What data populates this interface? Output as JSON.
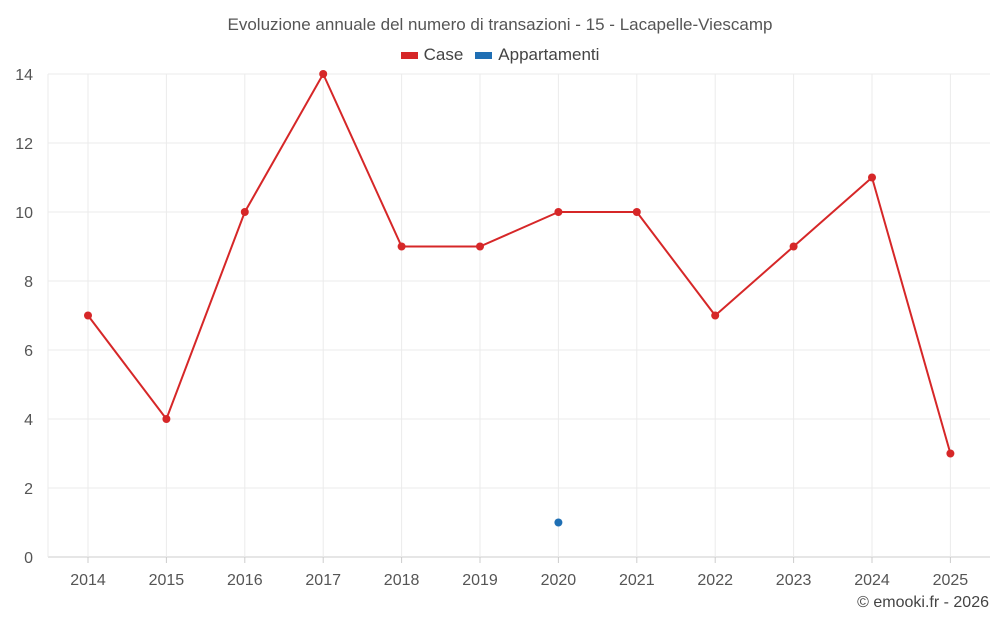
{
  "chart_data": {
    "type": "line",
    "title": "Evoluzione annuale del numero di transazioni - 15 - Lacapelle-Viescamp",
    "categories": [
      "2014",
      "2015",
      "2016",
      "2017",
      "2018",
      "2019",
      "2020",
      "2021",
      "2022",
      "2023",
      "2024",
      "2025"
    ],
    "series": [
      {
        "name": "Case",
        "color": "#d62728",
        "values": [
          7,
          4,
          10,
          14,
          9,
          9,
          10,
          10,
          7,
          9,
          11,
          3
        ]
      },
      {
        "name": "Appartamenti",
        "color": "#1f6fb4",
        "values": [
          null,
          null,
          null,
          null,
          null,
          null,
          1,
          null,
          null,
          null,
          null,
          null
        ]
      }
    ],
    "ylim": [
      0,
      14
    ],
    "yticks": [
      0,
      2,
      4,
      6,
      8,
      10,
      12,
      14
    ],
    "grid": true,
    "legend": "top-center",
    "xlabel": "",
    "ylabel": ""
  },
  "credit": "© emooki.fr - 2026"
}
